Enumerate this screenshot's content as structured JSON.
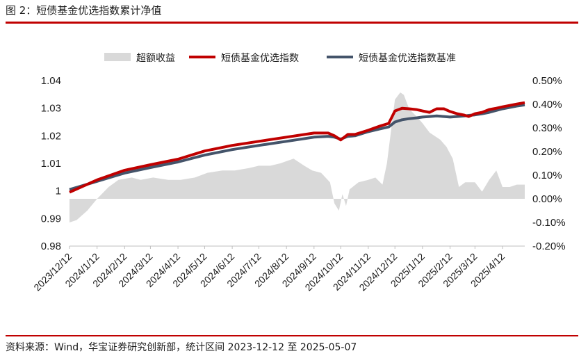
{
  "figure_title": "图 2：短债基金优选指数累计净值",
  "source_note": "资料来源：Wind，华宝证券研究创新部，统计区间 2023-12-12 至 2025-05-07",
  "colors": {
    "excess": "#d9d9d9",
    "index": "#c00000",
    "benchmark": "#44546a",
    "rule": "#c00000"
  },
  "chart_data": {
    "type": "line",
    "title": "",
    "legend_position": "top-center",
    "legend": [
      "超额收益",
      "短债基金优选指数",
      "短债基金优选指数基准"
    ],
    "y_left": {
      "ticks": [
        "1.04",
        "1.03",
        "1.02",
        "1.01",
        "1",
        "0.99",
        "0.98"
      ],
      "range": [
        0.98,
        1.04
      ]
    },
    "y_right": {
      "ticks": [
        "0.50%",
        "0.40%",
        "0.30%",
        "0.20%",
        "0.10%",
        "0.00%",
        "-0.10%",
        "-0.20%"
      ],
      "range": [
        -0.2,
        0.5
      ]
    },
    "x_ticks": [
      "2023/12/12",
      "2024/1/12",
      "2024/2/12",
      "2024/3/12",
      "2024/4/12",
      "2024/5/12",
      "2024/6/12",
      "2024/7/12",
      "2024/8/12",
      "2024/9/12",
      "2024/10/12",
      "2024/11/12",
      "2024/12/12",
      "2025/1/12",
      "2025/2/12",
      "2025/3/12",
      "2025/4/12"
    ],
    "x_range": [
      "2023-12-12",
      "2025-05-07"
    ],
    "series": [
      {
        "name": "超额收益",
        "axis": "right",
        "style": "area",
        "x": [
          "2023-12-12",
          "2023-12-20",
          "2024-01-01",
          "2024-01-12",
          "2024-01-25",
          "2024-02-05",
          "2024-02-20",
          "2024-03-01",
          "2024-03-15",
          "2024-04-01",
          "2024-04-15",
          "2024-05-01",
          "2024-05-15",
          "2024-06-01",
          "2024-06-15",
          "2024-07-01",
          "2024-07-12",
          "2024-07-25",
          "2024-08-05",
          "2024-08-20",
          "2024-09-01",
          "2024-09-10",
          "2024-09-20",
          "2024-09-30",
          "2024-10-05",
          "2024-10-10",
          "2024-10-14",
          "2024-10-18",
          "2024-10-22",
          "2024-11-01",
          "2024-11-12",
          "2024-11-20",
          "2024-11-28",
          "2024-12-03",
          "2024-12-08",
          "2024-12-12",
          "2024-12-18",
          "2024-12-22",
          "2024-12-28",
          "2025-01-05",
          "2025-01-12",
          "2025-01-20",
          "2025-02-01",
          "2025-02-08",
          "2025-02-15",
          "2025-02-22",
          "2025-03-01",
          "2025-03-12",
          "2025-03-20",
          "2025-03-28",
          "2025-04-05",
          "2025-04-12",
          "2025-04-20",
          "2025-04-28",
          "2025-05-07"
        ],
        "values": [
          -0.1,
          -0.09,
          -0.05,
          0.0,
          0.05,
          0.08,
          0.09,
          0.08,
          0.09,
          0.08,
          0.08,
          0.09,
          0.11,
          0.12,
          0.12,
          0.13,
          0.14,
          0.14,
          0.15,
          0.17,
          0.14,
          0.12,
          0.11,
          0.07,
          -0.02,
          -0.05,
          0.02,
          -0.03,
          0.04,
          0.07,
          0.08,
          0.09,
          0.06,
          0.15,
          0.3,
          0.42,
          0.45,
          0.44,
          0.38,
          0.35,
          0.32,
          0.28,
          0.25,
          0.22,
          0.17,
          0.05,
          0.07,
          0.07,
          0.03,
          0.08,
          0.12,
          0.05,
          0.05,
          0.06,
          0.06
        ]
      },
      {
        "name": "短债基金优选指数",
        "axis": "left",
        "style": "line",
        "x": [
          "2023-12-12",
          "2024-01-12",
          "2024-02-12",
          "2024-03-12",
          "2024-04-12",
          "2024-05-12",
          "2024-06-12",
          "2024-07-12",
          "2024-08-12",
          "2024-09-12",
          "2024-09-28",
          "2024-10-05",
          "2024-10-12",
          "2024-10-20",
          "2024-10-28",
          "2024-11-12",
          "2024-11-25",
          "2024-12-05",
          "2024-12-12",
          "2024-12-20",
          "2024-12-28",
          "2025-01-05",
          "2025-01-12",
          "2025-01-20",
          "2025-01-28",
          "2025-02-05",
          "2025-02-12",
          "2025-02-20",
          "2025-02-28",
          "2025-03-05",
          "2025-03-12",
          "2025-03-20",
          "2025-03-28",
          "2025-04-05",
          "2025-04-12",
          "2025-04-20",
          "2025-04-28",
          "2025-05-07"
        ],
        "values": [
          0.9995,
          1.004,
          1.0075,
          1.0095,
          1.0115,
          1.0145,
          1.0165,
          1.018,
          1.0195,
          1.021,
          1.021,
          1.02,
          1.0185,
          1.0205,
          1.0205,
          1.022,
          1.0235,
          1.0245,
          1.029,
          1.03,
          1.0298,
          1.0295,
          1.029,
          1.0285,
          1.0298,
          1.0298,
          1.0288,
          1.028,
          1.0275,
          1.027,
          1.028,
          1.0285,
          1.0295,
          1.03,
          1.0305,
          1.031,
          1.0315,
          1.032
        ]
      },
      {
        "name": "短债基金优选指数基准",
        "axis": "left",
        "style": "line",
        "x": [
          "2023-12-12",
          "2024-01-12",
          "2024-02-12",
          "2024-03-12",
          "2024-04-12",
          "2024-05-12",
          "2024-06-12",
          "2024-07-12",
          "2024-08-12",
          "2024-09-12",
          "2024-09-28",
          "2024-10-05",
          "2024-10-12",
          "2024-10-20",
          "2024-10-28",
          "2024-11-12",
          "2024-11-25",
          "2024-12-05",
          "2024-12-12",
          "2024-12-20",
          "2024-12-28",
          "2025-01-05",
          "2025-01-12",
          "2025-01-20",
          "2025-01-28",
          "2025-02-05",
          "2025-02-12",
          "2025-02-20",
          "2025-02-28",
          "2025-03-05",
          "2025-03-12",
          "2025-03-20",
          "2025-03-28",
          "2025-04-05",
          "2025-04-12",
          "2025-04-20",
          "2025-04-28",
          "2025-05-07"
        ],
        "values": [
          1.0005,
          1.0035,
          1.0065,
          1.0085,
          1.0105,
          1.013,
          1.015,
          1.0165,
          1.018,
          1.0195,
          1.0198,
          1.0195,
          1.0188,
          1.0198,
          1.02,
          1.0215,
          1.0225,
          1.0232,
          1.025,
          1.0258,
          1.0262,
          1.0265,
          1.0268,
          1.027,
          1.0272,
          1.027,
          1.0268,
          1.027,
          1.0272,
          1.0274,
          1.0276,
          1.028,
          1.0285,
          1.0292,
          1.0298,
          1.0303,
          1.0308,
          1.0312
        ]
      }
    ]
  }
}
